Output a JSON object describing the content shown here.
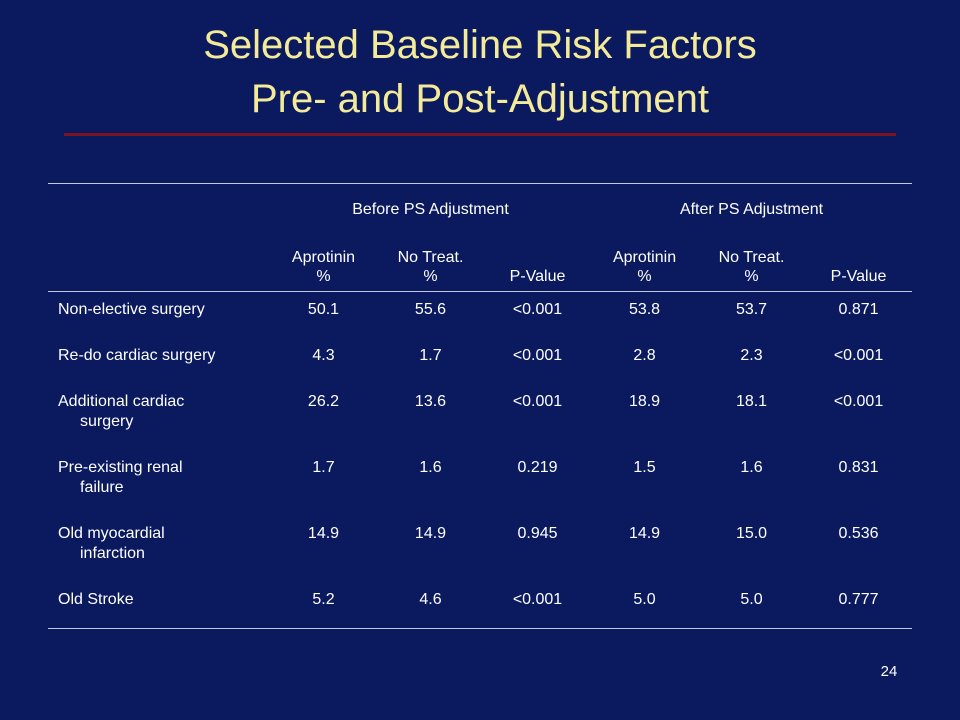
{
  "title": {
    "line1": "Selected Baseline Risk Factors",
    "line2": "Pre- and Post-Adjustment"
  },
  "table": {
    "group_headers": [
      "Before PS Adjustment",
      "After PS Adjustment"
    ],
    "sub_headers": [
      {
        "line1": "Aprotinin",
        "line2": "%"
      },
      {
        "line1": "No Treat.",
        "line2": "%"
      },
      {
        "line1": "",
        "line2": "P-Value"
      },
      {
        "line1": "Aprotinin",
        "line2": "%"
      },
      {
        "line1": "No Treat.",
        "line2": "%"
      },
      {
        "line1": "",
        "line2": "P-Value"
      }
    ],
    "rows": [
      {
        "label1": "Non-elective surgery",
        "label2": "",
        "values": [
          "50.1",
          "55.6",
          "<0.001",
          "53.8",
          "53.7",
          "0.871"
        ]
      },
      {
        "label1": "Re-do cardiac surgery",
        "label2": "",
        "values": [
          "4.3",
          "1.7",
          "<0.001",
          "2.8",
          "2.3",
          "<0.001"
        ]
      },
      {
        "label1": "Additional cardiac",
        "label2": "surgery",
        "values": [
          "26.2",
          "13.6",
          "<0.001",
          "18.9",
          "18.1",
          "<0.001"
        ]
      },
      {
        "label1": "Pre-existing renal",
        "label2": "failure",
        "values": [
          "1.7",
          "1.6",
          "0.219",
          "1.5",
          "1.6",
          "0.831"
        ]
      },
      {
        "label1": "Old myocardial",
        "label2": "infarction",
        "values": [
          "14.9",
          "14.9",
          "0.945",
          "14.9",
          "15.0",
          "0.536"
        ]
      },
      {
        "label1": "Old Stroke",
        "label2": "",
        "values": [
          "5.2",
          "4.6",
          "<0.001",
          "5.0",
          "5.0",
          "0.777"
        ]
      }
    ]
  },
  "page_number": "24",
  "colors": {
    "background": "#0b1a5e",
    "title_text": "#f3ea9a",
    "title_rule": "#7a1420",
    "table_text": "#ffffff"
  }
}
